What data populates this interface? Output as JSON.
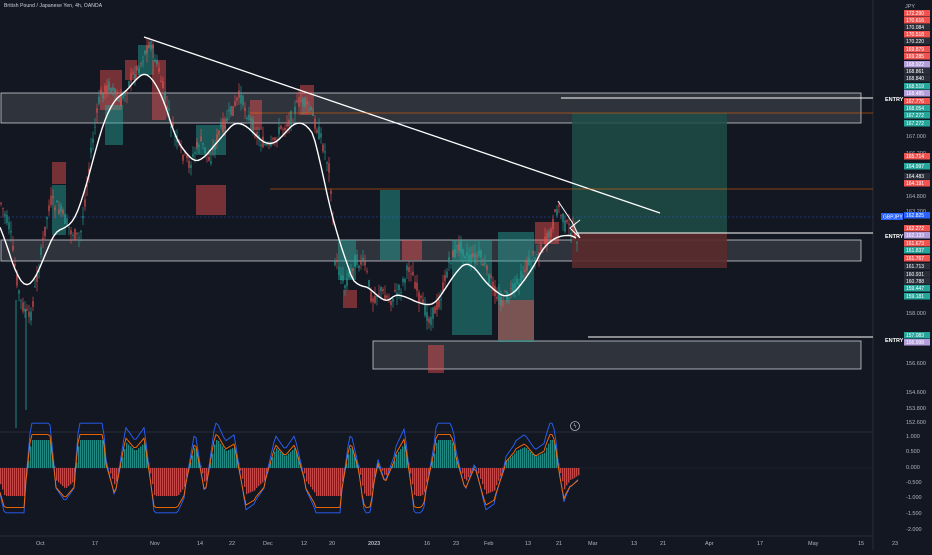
{
  "chart_header": {
    "symbol_title": "British Pound / Japanese Yen, 4h, OANDA",
    "currency": "JPY"
  },
  "colors": {
    "background": "#131722",
    "up": "#26a69a",
    "down": "#ef5350",
    "price_line": "#2962ff",
    "ma_line": "#ffffff",
    "macd_line": "#2962ff",
    "signal_line": "#ff6d00",
    "long_target_zone": "#1e4d47",
    "long_stop_zone": "#5a2a2c",
    "resistance_line": "#ff6d00"
  },
  "price_axis": {
    "labels": [
      "167.000",
      "166.200",
      "164.800",
      "163.200",
      "158.000",
      "156.600",
      "154.600",
      "153.800",
      "152.600"
    ],
    "right_tags": [
      {
        "text": "172.290",
        "color": "#ef5350"
      },
      {
        "text": "170.616",
        "color": "#ef5350"
      },
      {
        "text": "170.084",
        "color": "#2a2e39"
      },
      {
        "text": "170.518",
        "color": "#ef5350"
      },
      {
        "text": "170.220",
        "color": "#2a2e39"
      },
      {
        "text": "169.879",
        "color": "#ef5350"
      },
      {
        "text": "169.285",
        "color": "#ef5350"
      },
      {
        "text": "168.922",
        "color": "#b39ddb"
      },
      {
        "text": "168.861",
        "color": "#2a2e39"
      },
      {
        "text": "168.840",
        "color": "#2a2e39"
      },
      {
        "text": "168.519",
        "color": "#26a69a"
      },
      {
        "text": "168.485",
        "color": "#b39ddb"
      },
      {
        "text": "167.776",
        "color": "#ef5350"
      },
      {
        "text": "168.054",
        "color": "#26a69a"
      },
      {
        "text": "167.272",
        "color": "#26a69a"
      },
      {
        "text": "167.272",
        "color": "#26a69a"
      },
      {
        "text": "165.714",
        "color": "#ef5350"
      },
      {
        "text": "164.997",
        "color": "#26a69a"
      },
      {
        "text": "164.483",
        "color": "#2a2e39"
      },
      {
        "text": "164.191",
        "color": "#ef5350"
      },
      {
        "text": "162.825",
        "color": "#2962ff"
      },
      {
        "text": "162.272",
        "color": "#ef5350"
      },
      {
        "text": "162.133",
        "color": "#b39ddb"
      },
      {
        "text": "161.673",
        "color": "#ef5350"
      },
      {
        "text": "161.837",
        "color": "#26a69a"
      },
      {
        "text": "161.767",
        "color": "#ef5350"
      },
      {
        "text": "161.713",
        "color": "#2a2e39"
      },
      {
        "text": "160.931",
        "color": "#2a2e39"
      },
      {
        "text": "160.788",
        "color": "#2a2e39"
      },
      {
        "text": "159.447",
        "color": "#26a69a"
      },
      {
        "text": "159.181",
        "color": "#26a69a"
      },
      {
        "text": "157.083",
        "color": "#26a69a"
      },
      {
        "text": "156.998",
        "color": "#b39ddb"
      }
    ],
    "symbol_tag": "GBPJPY",
    "current_price_tag": "162.825"
  },
  "entry_labels": [
    "ENTRY",
    "ENTRY",
    "ENTRY"
  ],
  "oscillator_axis": [
    "1.000",
    "0.500",
    "0.000",
    "-0.500",
    "-1.000",
    "-1.500",
    "-2.000"
  ],
  "time_axis": [
    "Oct",
    "17",
    "Nov",
    "14",
    "22",
    "Dec",
    "12",
    "20",
    "2023",
    "16",
    "23",
    "Feb",
    "13",
    "21",
    "Mar",
    "13",
    "21",
    "Apr",
    "17",
    "May",
    "15",
    "23"
  ],
  "bar_replay_icon": "lightning-icon"
}
